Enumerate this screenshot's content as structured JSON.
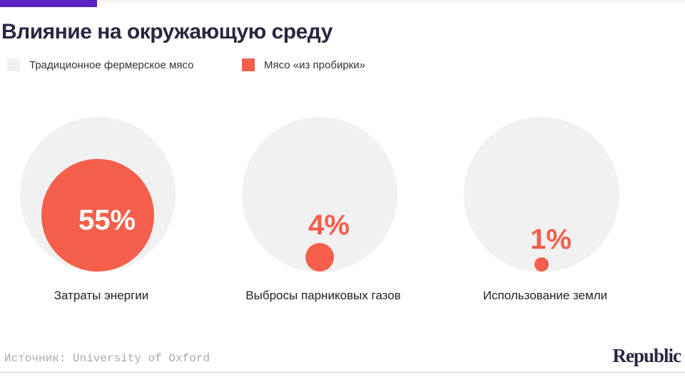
{
  "title": "Влияние на окружающую среду",
  "legend": [
    {
      "label": "Традиционное фермерское мясо",
      "color": "#f1f1f1"
    },
    {
      "label": "Мясо «из пробирки»",
      "color": "#f55f4b"
    }
  ],
  "chart_data": {
    "type": "proportional-circles",
    "title": "Влияние на окружающую среду",
    "series": [
      "Традиционное фермерское мясо",
      "Мясо «из пробирки»"
    ],
    "categories": [
      "Затраты энергии",
      "Выбросы парниковых газов",
      "Использование земли"
    ],
    "values": [
      55,
      4,
      1
    ],
    "value_labels": [
      "55%",
      "4%",
      "1%"
    ],
    "baseline": 100
  },
  "source": "Источник: University of Oxford",
  "logo": "Republic"
}
